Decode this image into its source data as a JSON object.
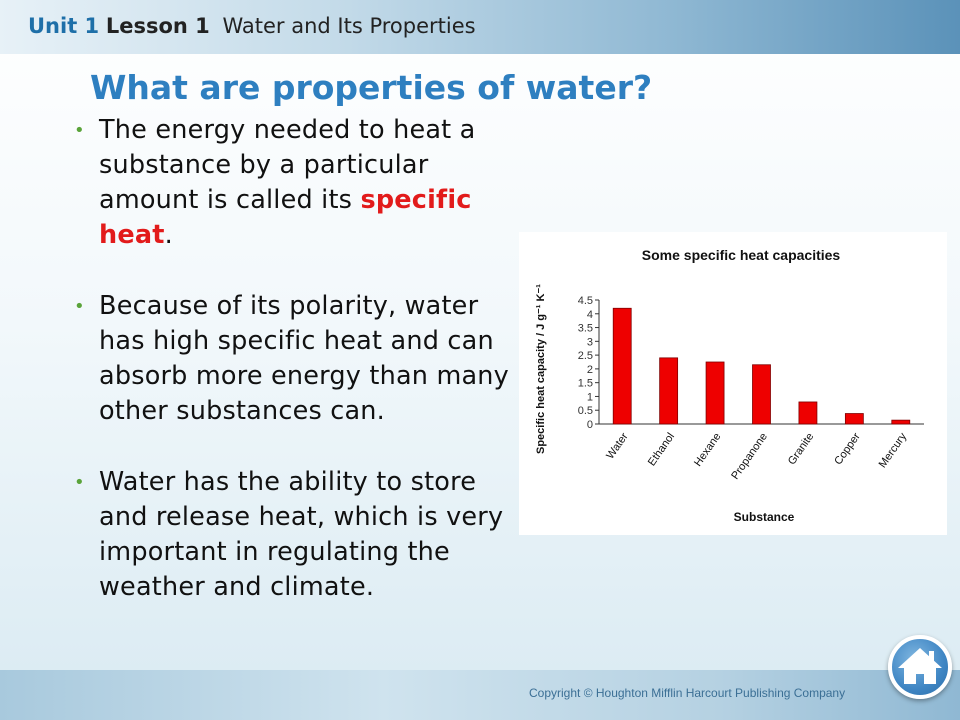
{
  "header": {
    "unit": "Unit 1",
    "lesson": "Lesson 1",
    "lesson_title": "Water and Its Properties"
  },
  "slide_title": "What are properties of water?",
  "bullets": [
    {
      "text_before": "The energy needed to heat a substance by a particular amount is called its ",
      "highlight": "specific heat",
      "text_after": "."
    },
    {
      "text_before": "Because of its polarity, water has high specific heat and can absorb more energy than many other substances can.",
      "highlight": "",
      "text_after": ""
    },
    {
      "text_before": "Water has the ability to store and release heat, which is very important in regulating the weather and climate.",
      "highlight": "",
      "text_after": ""
    }
  ],
  "footer": {
    "copyright": "Copyright © Houghton Mifflin Harcourt Publishing Company",
    "home_icon": "home-icon"
  },
  "colors": {
    "title": "#2e7fc0",
    "highlight": "#e21b1b",
    "bullet": "#5aa33a",
    "bar": "#ee0000"
  },
  "chart_data": {
    "type": "bar",
    "title": "Some specific heat capacities",
    "xlabel": "Substance",
    "ylabel": "Specific heat capacity / J g⁻¹ K⁻¹",
    "categories": [
      "Water",
      "Ethanol",
      "Hexane",
      "Propanone",
      "Granite",
      "Copper",
      "Mercury"
    ],
    "values": [
      4.2,
      2.4,
      2.25,
      2.15,
      0.8,
      0.38,
      0.14
    ],
    "ylim": [
      0,
      4.5
    ],
    "yticks": [
      "0",
      "0.5",
      "1",
      "1.5",
      "2",
      "2.5",
      "3",
      "3.5",
      "4",
      "4.5"
    ],
    "grid": false,
    "legend": "none"
  }
}
